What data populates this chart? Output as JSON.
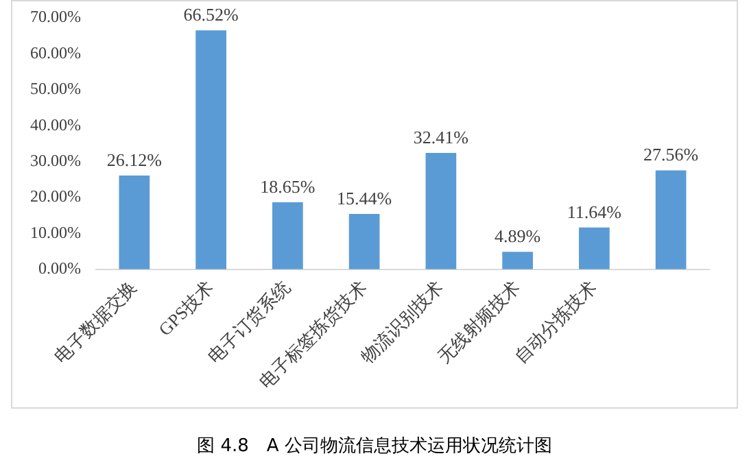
{
  "chart_data": {
    "type": "bar",
    "title": "图 4.8　A 公司物流信息技术运用状况统计图",
    "categories": [
      "电子数据交换",
      "GPS技术",
      "电子订货系统",
      "电子标签拣货技术",
      "物流识别技术",
      "无线射频技术",
      "自动分拣技术",
      null
    ],
    "values": [
      26.12,
      66.52,
      18.65,
      15.44,
      32.41,
      4.89,
      11.64,
      27.56
    ],
    "value_labels": [
      "26.12%",
      "66.52%",
      "18.65%",
      "15.44%",
      "32.41%",
      "4.89%",
      "11.64%",
      "27.56%"
    ],
    "color": "#5b9bd5",
    "ylim": [
      0,
      70
    ],
    "yticks": [
      {
        "value": 0,
        "label": "0.00%"
      },
      {
        "value": 10,
        "label": "10.00%"
      },
      {
        "value": 20,
        "label": "20.00%"
      },
      {
        "value": 30,
        "label": "30.00%"
      },
      {
        "value": 40,
        "label": "40.00%"
      },
      {
        "value": 50,
        "label": "50.00%"
      },
      {
        "value": 60,
        "label": "60.00%"
      },
      {
        "value": 70,
        "label": "70.00%"
      }
    ],
    "grid": false,
    "legend": false
  }
}
